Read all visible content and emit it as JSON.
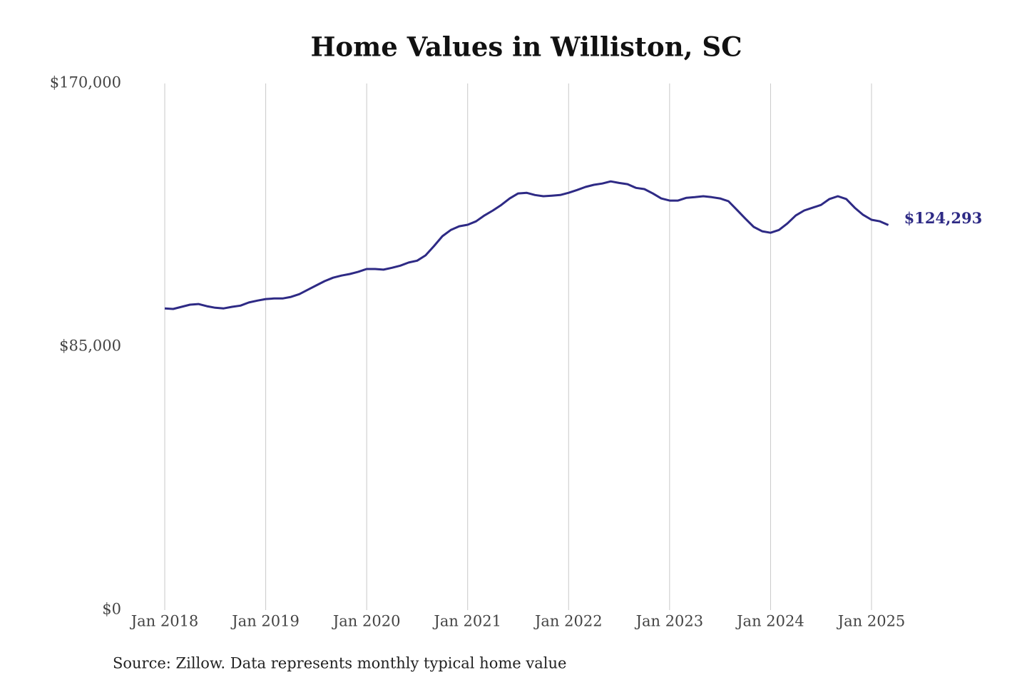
{
  "chart_data": {
    "type": "line",
    "title": "Home Values in Williston, SC",
    "source": "Source: Zillow. Data represents monthly typical home value",
    "color": "#2e2a85",
    "x": [
      "2018-01",
      "2018-02",
      "2018-03",
      "2018-04",
      "2018-05",
      "2018-06",
      "2018-07",
      "2018-08",
      "2018-09",
      "2018-10",
      "2018-11",
      "2018-12",
      "2019-01",
      "2019-02",
      "2019-03",
      "2019-04",
      "2019-05",
      "2019-06",
      "2019-07",
      "2019-08",
      "2019-09",
      "2019-10",
      "2019-11",
      "2019-12",
      "2020-01",
      "2020-02",
      "2020-03",
      "2020-04",
      "2020-05",
      "2020-06",
      "2020-07",
      "2020-08",
      "2020-09",
      "2020-10",
      "2020-11",
      "2020-12",
      "2021-01",
      "2021-02",
      "2021-03",
      "2021-04",
      "2021-05",
      "2021-06",
      "2021-07",
      "2021-08",
      "2021-09",
      "2021-10",
      "2021-11",
      "2021-12",
      "2022-01",
      "2022-02",
      "2022-03",
      "2022-04",
      "2022-05",
      "2022-06",
      "2022-07",
      "2022-08",
      "2022-09",
      "2022-10",
      "2022-11",
      "2022-12",
      "2023-01",
      "2023-02",
      "2023-03",
      "2023-04",
      "2023-05",
      "2023-06",
      "2023-07",
      "2023-08",
      "2023-09",
      "2023-10",
      "2023-11",
      "2023-12",
      "2024-01",
      "2024-02",
      "2024-03",
      "2024-04",
      "2024-05",
      "2024-06",
      "2024-07",
      "2024-08",
      "2024-09",
      "2024-10",
      "2024-11",
      "2024-12",
      "2025-01",
      "2025-02",
      "2025-03"
    ],
    "values": [
      97400,
      97200,
      97900,
      98600,
      98800,
      98100,
      97600,
      97400,
      97900,
      98300,
      99300,
      99900,
      100400,
      100600,
      100600,
      101100,
      102000,
      103400,
      104800,
      106200,
      107300,
      108000,
      108500,
      109200,
      110100,
      110100,
      109900,
      110500,
      111200,
      112200,
      112800,
      114500,
      117500,
      120700,
      122700,
      123900,
      124400,
      125500,
      127400,
      129000,
      130800,
      132900,
      134500,
      134700,
      134000,
      133600,
      133800,
      134000,
      134700,
      135600,
      136600,
      137300,
      137700,
      138400,
      137900,
      137500,
      136300,
      135900,
      134500,
      132900,
      132200,
      132200,
      133100,
      133300,
      133600,
      133300,
      132900,
      132000,
      129200,
      126400,
      123700,
      122300,
      121800,
      122700,
      124800,
      127400,
      129000,
      129900,
      130800,
      132700,
      133600,
      132700,
      129900,
      127600,
      126000,
      125500,
      124293
    ],
    "value_labels": [
      null,
      null,
      null,
      null,
      null,
      null,
      null,
      null,
      null,
      null,
      null,
      null,
      null,
      null,
      null,
      null,
      null,
      null,
      null,
      null,
      null,
      null,
      null,
      null,
      null,
      null,
      null,
      null,
      null,
      null,
      null,
      null,
      null,
      null,
      null,
      null,
      null,
      null,
      null,
      null,
      null,
      null,
      null,
      null,
      null,
      null,
      null,
      null,
      null,
      null,
      null,
      null,
      null,
      null,
      null,
      null,
      null,
      null,
      null,
      null,
      null,
      null,
      null,
      null,
      null,
      null,
      null,
      null,
      null,
      null,
      null,
      null,
      null,
      null,
      null,
      null,
      null,
      null,
      null,
      null,
      null,
      null,
      null,
      null,
      null,
      null,
      "$124,293"
    ],
    "xlim": [
      "2018-01",
      "2025-03"
    ],
    "xticks": [
      {
        "value": "2018-01",
        "label": "Jan 2018"
      },
      {
        "value": "2019-01",
        "label": "Jan 2019"
      },
      {
        "value": "2020-01",
        "label": "Jan 2020"
      },
      {
        "value": "2021-01",
        "label": "Jan 2021"
      },
      {
        "value": "2022-01",
        "label": "Jan 2022"
      },
      {
        "value": "2023-01",
        "label": "Jan 2023"
      },
      {
        "value": "2024-01",
        "label": "Jan 2024"
      },
      {
        "value": "2025-01",
        "label": "Jan 2025"
      }
    ],
    "ylim": [
      0,
      170000
    ],
    "yticks": [
      {
        "value": 0,
        "label": "$0"
      },
      {
        "value": 85000,
        "label": "$85,000"
      },
      {
        "value": 170000,
        "label": "$170,000"
      }
    ],
    "grid": "x"
  }
}
